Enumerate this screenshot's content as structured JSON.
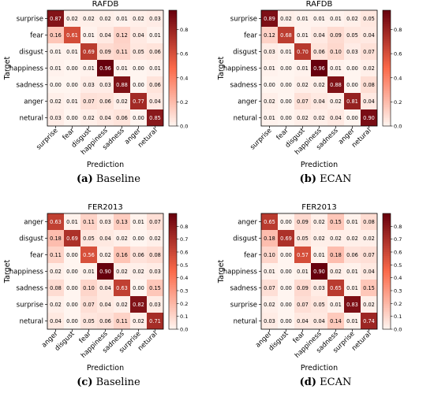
{
  "figure": {
    "captions": [
      {
        "letter": "(a)",
        "text": "Baseline"
      },
      {
        "letter": "(b)",
        "text": "ECAN"
      },
      {
        "letter": "(c)",
        "text": "Baseline"
      },
      {
        "letter": "(d)",
        "text": "ECAN"
      }
    ]
  },
  "colors": {
    "low": "#fff5f0",
    "mid": "#fb6a4a",
    "high": "#67000d"
  },
  "chart_data": [
    {
      "type": "heatmap",
      "title": "RAFDB",
      "xlabel": "Prediction",
      "ylabel": "Target",
      "rows": [
        "surprise",
        "fear",
        "disgust",
        "happiness",
        "sadness",
        "anger",
        "netural"
      ],
      "cols": [
        "surprise",
        "fear",
        "disgust",
        "happiness",
        "sadness",
        "anger",
        "netural"
      ],
      "values": [
        [
          0.87,
          0.02,
          0.02,
          0.02,
          0.01,
          0.02,
          0.03
        ],
        [
          0.16,
          0.61,
          0.01,
          0.04,
          0.12,
          0.04,
          0.01
        ],
        [
          0.01,
          0.01,
          0.69,
          0.09,
          0.11,
          0.05,
          0.06
        ],
        [
          0.01,
          0.0,
          0.01,
          0.96,
          0.01,
          0.0,
          0.01
        ],
        [
          0.0,
          0.0,
          0.03,
          0.03,
          0.88,
          0.0,
          0.06
        ],
        [
          0.02,
          0.01,
          0.07,
          0.06,
          0.02,
          0.77,
          0.04
        ],
        [
          0.03,
          0.0,
          0.02,
          0.04,
          0.06,
          0.0,
          0.85
        ]
      ],
      "colorbar": {
        "ticks": [
          "0.0",
          "0.2",
          "0.4",
          "0.6",
          "0.8"
        ],
        "range": [
          0,
          0.96
        ]
      }
    },
    {
      "type": "heatmap",
      "title": "RAFDB",
      "xlabel": "Prediction",
      "ylabel": "Target",
      "rows": [
        "surprise",
        "fear",
        "disgust",
        "happiness",
        "sadness",
        "anger",
        "netural"
      ],
      "cols": [
        "surprise",
        "fear",
        "disgust",
        "happiness",
        "sadness",
        "anger",
        "netural"
      ],
      "values": [
        [
          0.89,
          0.02,
          0.01,
          0.01,
          0.01,
          0.02,
          0.05
        ],
        [
          0.12,
          0.68,
          0.01,
          0.04,
          0.09,
          0.05,
          0.04
        ],
        [
          0.03,
          0.01,
          0.7,
          0.06,
          0.1,
          0.03,
          0.07
        ],
        [
          0.01,
          0.0,
          0.01,
          0.96,
          0.01,
          0.0,
          0.02
        ],
        [
          0.0,
          0.0,
          0.02,
          0.02,
          0.88,
          0.0,
          0.08
        ],
        [
          0.02,
          0.0,
          0.07,
          0.04,
          0.02,
          0.81,
          0.04
        ],
        [
          0.01,
          0.0,
          0.02,
          0.02,
          0.04,
          0.0,
          0.9
        ]
      ],
      "colorbar": {
        "ticks": [
          "0.0",
          "0.2",
          "0.4",
          "0.6",
          "0.8"
        ],
        "range": [
          0,
          0.96
        ]
      }
    },
    {
      "type": "heatmap",
      "title": "FER2013",
      "xlabel": "Prediction",
      "ylabel": "Target",
      "rows": [
        "anger",
        "disgust",
        "fear",
        "happiness",
        "sadness",
        "surprise",
        "netural"
      ],
      "cols": [
        "anger",
        "disgust",
        "fear",
        "happiness",
        "sadness",
        "surprise",
        "netural"
      ],
      "values": [
        [
          0.63,
          0.01,
          0.11,
          0.03,
          0.13,
          0.01,
          0.07
        ],
        [
          0.18,
          0.69,
          0.05,
          0.04,
          0.02,
          0.0,
          0.02
        ],
        [
          0.11,
          0.0,
          0.56,
          0.02,
          0.16,
          0.06,
          0.08
        ],
        [
          0.02,
          0.0,
          0.01,
          0.9,
          0.02,
          0.02,
          0.03
        ],
        [
          0.08,
          0.0,
          0.1,
          0.04,
          0.63,
          0.0,
          0.15
        ],
        [
          0.02,
          0.0,
          0.07,
          0.04,
          0.02,
          0.82,
          0.03
        ],
        [
          0.04,
          0.0,
          0.05,
          0.06,
          0.11,
          0.02,
          0.71
        ]
      ],
      "colorbar": {
        "ticks": [
          "0.0",
          "0.1",
          "0.2",
          "0.3",
          "0.4",
          "0.5",
          "0.6",
          "0.7",
          "0.8"
        ],
        "range": [
          0,
          0.9
        ]
      }
    },
    {
      "type": "heatmap",
      "title": "FER2013",
      "xlabel": "Prediction",
      "ylabel": "Target",
      "rows": [
        "anger",
        "disgust",
        "fear",
        "happiness",
        "sadness",
        "surprise",
        "netural"
      ],
      "cols": [
        "anger",
        "disgust",
        "fear",
        "happiness",
        "sadness",
        "surprise",
        "netural"
      ],
      "values": [
        [
          0.65,
          0.0,
          0.09,
          0.02,
          0.15,
          0.01,
          0.08
        ],
        [
          0.18,
          0.69,
          0.05,
          0.02,
          0.02,
          0.02,
          0.02
        ],
        [
          0.1,
          0.0,
          0.57,
          0.01,
          0.18,
          0.06,
          0.07
        ],
        [
          0.01,
          0.0,
          0.01,
          0.9,
          0.02,
          0.01,
          0.04
        ],
        [
          0.07,
          0.0,
          0.09,
          0.03,
          0.65,
          0.01,
          0.15
        ],
        [
          0.02,
          0.0,
          0.07,
          0.05,
          0.01,
          0.83,
          0.02
        ],
        [
          0.03,
          0.0,
          0.04,
          0.04,
          0.14,
          0.01,
          0.74
        ]
      ],
      "colorbar": {
        "ticks": [
          "0.0",
          "0.1",
          "0.2",
          "0.3",
          "0.4",
          "0.5",
          "0.6",
          "0.7",
          "0.8"
        ],
        "range": [
          0,
          0.9
        ]
      }
    }
  ]
}
